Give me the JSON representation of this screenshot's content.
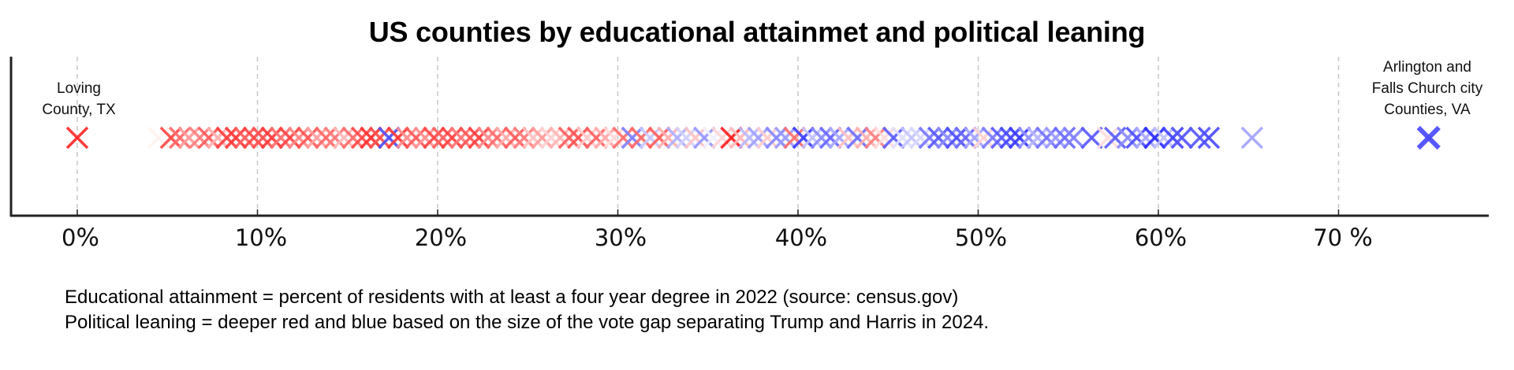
{
  "chart_data": {
    "type": "scatter",
    "title": "US counties by educational attainmet and political leaning",
    "xlabel": "",
    "ylabel": "",
    "xlim": [
      -3.8,
      78.2
    ],
    "xticks": [
      0,
      10,
      20,
      30,
      40,
      50,
      60,
      70
    ],
    "xtick_labels": [
      "0%",
      "10%",
      "20%",
      "30%",
      "40%",
      "50%",
      "60%",
      "70%"
    ],
    "grid": "vertical dashed at x ticks",
    "marker": "x",
    "color_scale": "red (Trump margin) to white to blue (Harris margin), deeper = larger vote gap",
    "annotations": [
      {
        "text": "Loving\nCounty, TX",
        "x": 0,
        "color": "#ff2a2a"
      },
      {
        "text": "Arlington and\nFalls Church city\nCounties, VA",
        "x": 75,
        "color": "#4a4aff"
      }
    ],
    "data_range": {
      "min": 0,
      "dense_start": 5,
      "dense_end": 63,
      "outliers": [
        0,
        65,
        75
      ]
    },
    "points": [
      {
        "x": 0.0,
        "c": "#ff2a2a"
      },
      {
        "x": 4.5,
        "c": "#fff3ee"
      },
      {
        "x": 5.2,
        "c": "#ff4a4a"
      },
      {
        "x": 5.7,
        "c": "#ff6a6a"
      },
      {
        "x": 6.2,
        "c": "#ff9a9a"
      },
      {
        "x": 6.8,
        "c": "#ff8080"
      },
      {
        "x": 7.3,
        "c": "#ff5c5c"
      },
      {
        "x": 7.8,
        "c": "#ffb0b0"
      },
      {
        "x": 8.3,
        "c": "#ff4040"
      },
      {
        "x": 8.8,
        "c": "#ff3a3a"
      },
      {
        "x": 9.3,
        "c": "#ff6060"
      },
      {
        "x": 9.8,
        "c": "#ff4848"
      },
      {
        "x": 10.3,
        "c": "#ff5050"
      },
      {
        "x": 10.8,
        "c": "#ff3c3c"
      },
      {
        "x": 11.3,
        "c": "#ff7070"
      },
      {
        "x": 11.8,
        "c": "#ff4444"
      },
      {
        "x": 12.3,
        "c": "#ff8888"
      },
      {
        "x": 12.8,
        "c": "#ff5858"
      },
      {
        "x": 13.3,
        "c": "#ffa0a0"
      },
      {
        "x": 13.8,
        "c": "#ff6868"
      },
      {
        "x": 14.3,
        "c": "#ff7a7a"
      },
      {
        "x": 14.8,
        "c": "#ffb8b8"
      },
      {
        "x": 15.3,
        "c": "#ff6c6c"
      },
      {
        "x": 15.8,
        "c": "#ff4c4c"
      },
      {
        "x": 16.3,
        "c": "#ff3030"
      },
      {
        "x": 16.8,
        "c": "#ff5050"
      },
      {
        "x": 17.3,
        "c": "#5050ff"
      },
      {
        "x": 17.8,
        "c": "#ff3a3a"
      },
      {
        "x": 18.3,
        "c": "#ff8c8c"
      },
      {
        "x": 18.8,
        "c": "#ff5a5a"
      },
      {
        "x": 19.3,
        "c": "#ff9090"
      },
      {
        "x": 19.8,
        "c": "#ff4646"
      },
      {
        "x": 20.3,
        "c": "#ff6262"
      },
      {
        "x": 20.8,
        "c": "#ff4444"
      },
      {
        "x": 21.3,
        "c": "#ff7878"
      },
      {
        "x": 21.8,
        "c": "#ff5656"
      },
      {
        "x": 22.3,
        "c": "#ff4040"
      },
      {
        "x": 22.8,
        "c": "#ff8a8a"
      },
      {
        "x": 23.3,
        "c": "#ff6a6a"
      },
      {
        "x": 23.8,
        "c": "#ffaaaa"
      },
      {
        "x": 24.3,
        "c": "#ff5c5c"
      },
      {
        "x": 24.8,
        "c": "#ff7c7c"
      },
      {
        "x": 25.3,
        "c": "#ffc0c0"
      },
      {
        "x": 25.8,
        "c": "#ff9c9c"
      },
      {
        "x": 26.3,
        "c": "#ffd0d0"
      },
      {
        "x": 26.8,
        "c": "#ffb4b4"
      },
      {
        "x": 27.3,
        "c": "#ff6060"
      },
      {
        "x": 27.8,
        "c": "#ff5454"
      },
      {
        "x": 28.3,
        "c": "#ffc8c8"
      },
      {
        "x": 28.8,
        "c": "#ff6464"
      },
      {
        "x": 29.3,
        "c": "#ffa8a8"
      },
      {
        "x": 29.8,
        "c": "#ffd8d8"
      },
      {
        "x": 30.3,
        "c": "#ff7070"
      },
      {
        "x": 30.8,
        "c": "#8080ff"
      },
      {
        "x": 31.3,
        "c": "#ff6a6a"
      },
      {
        "x": 31.8,
        "c": "#c8c8ff"
      },
      {
        "x": 32.3,
        "c": "#ff6060"
      },
      {
        "x": 32.8,
        "c": "#ffb0b0"
      },
      {
        "x": 33.3,
        "c": "#b0b0ff"
      },
      {
        "x": 33.8,
        "c": "#d0d0ff"
      },
      {
        "x": 34.3,
        "c": "#ffc4c4"
      },
      {
        "x": 34.8,
        "c": "#9898ff"
      },
      {
        "x": 35.3,
        "c": "#f0f0ff"
      },
      {
        "x": 35.8,
        "c": "#ffd4d4"
      },
      {
        "x": 36.3,
        "c": "#ff2020"
      },
      {
        "x": 36.8,
        "c": "#ffb8b8"
      },
      {
        "x": 37.3,
        "c": "#b8b8ff"
      },
      {
        "x": 37.8,
        "c": "#a0a0ff"
      },
      {
        "x": 38.3,
        "c": "#ffcccc"
      },
      {
        "x": 38.8,
        "c": "#8888ff"
      },
      {
        "x": 39.3,
        "c": "#9c9cff"
      },
      {
        "x": 39.8,
        "c": "#ff7070"
      },
      {
        "x": 40.3,
        "c": "#4040ff"
      },
      {
        "x": 40.8,
        "c": "#c0c0ff"
      },
      {
        "x": 41.3,
        "c": "#8c8cff"
      },
      {
        "x": 41.8,
        "c": "#6868ff"
      },
      {
        "x": 42.3,
        "c": "#a8a8ff"
      },
      {
        "x": 42.8,
        "c": "#ffc0c0"
      },
      {
        "x": 43.3,
        "c": "#7070ff"
      },
      {
        "x": 43.8,
        "c": "#ffb0b0"
      },
      {
        "x": 44.3,
        "c": "#ff8080"
      },
      {
        "x": 44.8,
        "c": "#ffdada"
      },
      {
        "x": 45.3,
        "c": "#6060ff"
      },
      {
        "x": 45.8,
        "c": "#e0e0ff"
      },
      {
        "x": 46.3,
        "c": "#c4c4ff"
      },
      {
        "x": 46.8,
        "c": "#d8d8ff"
      },
      {
        "x": 47.3,
        "c": "#7878ff"
      },
      {
        "x": 47.8,
        "c": "#5a5aff"
      },
      {
        "x": 48.3,
        "c": "#8a8aff"
      },
      {
        "x": 48.8,
        "c": "#5050ff"
      },
      {
        "x": 49.3,
        "c": "#6a6aff"
      },
      {
        "x": 49.8,
        "c": "#a4a4ff"
      },
      {
        "x": 50.3,
        "c": "#ffd0d0"
      },
      {
        "x": 50.8,
        "c": "#7c7cff"
      },
      {
        "x": 51.3,
        "c": "#5c5cff"
      },
      {
        "x": 51.8,
        "c": "#4848ff"
      },
      {
        "x": 52.3,
        "c": "#3a3aff"
      },
      {
        "x": 52.8,
        "c": "#9090ff"
      },
      {
        "x": 53.3,
        "c": "#b4b4ff"
      },
      {
        "x": 53.8,
        "c": "#7474ff"
      },
      {
        "x": 54.3,
        "c": "#9a9aff"
      },
      {
        "x": 54.8,
        "c": "#6c6cff"
      },
      {
        "x": 55.3,
        "c": "#8080ff"
      },
      {
        "x": 56.3,
        "c": "#5a5aff"
      },
      {
        "x": 57.2,
        "c": "#ffdcdc"
      },
      {
        "x": 57.6,
        "c": "#6060ff"
      },
      {
        "x": 58.3,
        "c": "#8c8cff"
      },
      {
        "x": 58.8,
        "c": "#5050ff"
      },
      {
        "x": 59.3,
        "c": "#a8a8ff"
      },
      {
        "x": 59.8,
        "c": "#2c2cff"
      },
      {
        "x": 60.3,
        "c": "#c0c0ff"
      },
      {
        "x": 60.8,
        "c": "#4444ff"
      },
      {
        "x": 61.3,
        "c": "#5656ff"
      },
      {
        "x": 62.3,
        "c": "#5858ff"
      },
      {
        "x": 62.8,
        "c": "#4c4cff"
      },
      {
        "x": 65.2,
        "c": "#a4a4ff"
      },
      {
        "x": 75.0,
        "c": "#4a4aff"
      }
    ]
  },
  "footnotes": {
    "line1": "Educational attainment = percent of residents with at least a four year degree in 2022 (source: census.gov)",
    "line2": "Political leaning  = deeper red and blue based on the size of the vote gap separating Trump and Harris in 2024."
  },
  "annotations": {
    "left_line1": "Loving",
    "left_line2": "County, TX",
    "right_line1": "Arlington and",
    "right_line2": "Falls Church city",
    "right_line3": "Counties, VA"
  },
  "ticks": [
    {
      "num": "0",
      "pct": "%"
    },
    {
      "num": "10",
      "pct": "%"
    },
    {
      "num": "20",
      "pct": "%"
    },
    {
      "num": "30",
      "pct": "%"
    },
    {
      "num": "40",
      "pct": "%"
    },
    {
      "num": "50",
      "pct": "%"
    },
    {
      "num": "60",
      "pct": "%"
    },
    {
      "num": "70 ",
      "pct": "%"
    }
  ]
}
